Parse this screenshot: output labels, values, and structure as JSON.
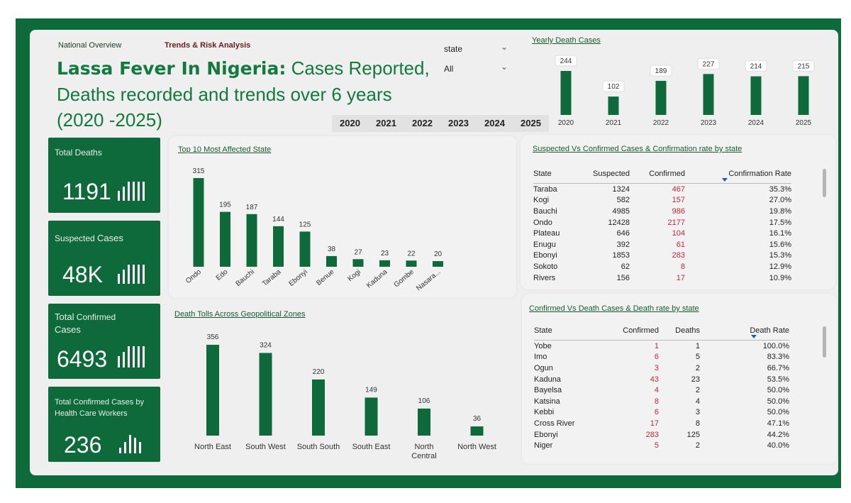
{
  "nav": {
    "overview": "National Overview",
    "trends": "Trends & Risk Analysis"
  },
  "title": {
    "bold": "Lassa Fever In Nigeria:",
    "rest": " Cases Reported, Deaths recorded and trends over  6 years (2020 -2025)"
  },
  "slicer": {
    "state_label": "state",
    "state_value": "All"
  },
  "year_buttons": [
    "2020",
    "2021",
    "2022",
    "2023",
    "2024",
    "2025"
  ],
  "cards": [
    {
      "label": "Total Deaths",
      "value": "1191"
    },
    {
      "label_a": "Suspected ",
      "label_b": "Cases",
      "value": "48K"
    },
    {
      "label_a": "Total",
      "label_b": " Confirmed",
      "label_c": "Cases",
      "value": "6493"
    },
    {
      "label": "Total Confirmed Cases by Health Care Workers",
      "value": "236"
    }
  ],
  "icons": {
    "card_bar": "bar-chart-icon",
    "dropdown": "chevron-down-icon",
    "sort": "sort-desc-icon"
  },
  "colors": {
    "bar": "#0e6a3a",
    "red": "#c0283a",
    "title": "#127a3e"
  },
  "chart_data": [
    {
      "id": "yearly",
      "type": "bar",
      "title": "Yearly Death Cases",
      "categories": [
        "2020",
        "2021",
        "2022",
        "2023",
        "2024",
        "2025"
      ],
      "values": [
        244,
        102,
        189,
        227,
        214,
        215
      ],
      "ylim": [
        0,
        244
      ]
    },
    {
      "id": "top10",
      "type": "bar",
      "title": "Top 10 Most Affected State",
      "categories": [
        "Ondo",
        "Edo",
        "Bauchi",
        "Taraba",
        "Ebonyi",
        "Benue",
        "Kogi",
        "Kaduna",
        "Gombe",
        "Nasara..."
      ],
      "values": [
        315,
        195,
        187,
        144,
        125,
        38,
        27,
        23,
        22,
        20
      ],
      "ylim": [
        0,
        315
      ]
    },
    {
      "id": "zones",
      "type": "bar",
      "title": "Death Tolls Across Geopolitical Zones",
      "categories": [
        "North East",
        "South West",
        "South South",
        "South East",
        "North Central",
        "North West"
      ],
      "values": [
        356,
        324,
        220,
        149,
        106,
        36
      ],
      "ylim": [
        0,
        356
      ]
    }
  ],
  "table1": {
    "title": "Suspected Vs Confirmed Cases &   Confirmation rate by state",
    "headers": [
      "State",
      "Suspected",
      "Confirmed",
      "Confirmation Rate"
    ],
    "rows": [
      [
        "Taraba",
        "1324",
        "467",
        "35.3%"
      ],
      [
        "Kogi",
        "582",
        "157",
        "27.0%"
      ],
      [
        "Bauchi",
        "4985",
        "986",
        "19.8%"
      ],
      [
        "Ondo",
        "12428",
        "2177",
        "17.5%"
      ],
      [
        "Plateau",
        "646",
        "104",
        "16.1%"
      ],
      [
        "Enugu",
        "392",
        "61",
        "15.6%"
      ],
      [
        "Ebonyi",
        "1853",
        "283",
        "15.3%"
      ],
      [
        "Sokoto",
        "62",
        "8",
        "12.9%"
      ],
      [
        "Rivers",
        "156",
        "17",
        "10.9%"
      ]
    ]
  },
  "table2": {
    "title": "Confirmed Vs Death  Cases &  Death rate by state",
    "headers": [
      "State",
      "Confirmed",
      "Deaths",
      "Death Rate"
    ],
    "rows": [
      [
        "Yobe",
        "1",
        "1",
        "100.0%"
      ],
      [
        "Imo",
        "6",
        "5",
        "83.3%"
      ],
      [
        "Ogun",
        "3",
        "2",
        "66.7%"
      ],
      [
        "Kaduna",
        "43",
        "23",
        "53.5%"
      ],
      [
        "Bayelsa",
        "4",
        "2",
        "50.0%"
      ],
      [
        "Katsina",
        "8",
        "4",
        "50.0%"
      ],
      [
        "Kebbi",
        "6",
        "3",
        "50.0%"
      ],
      [
        "Cross River",
        "17",
        "8",
        "47.1%"
      ],
      [
        "Ebonyi",
        "283",
        "125",
        "44.2%"
      ],
      [
        "Niger",
        "5",
        "2",
        "40.0%"
      ]
    ]
  }
}
